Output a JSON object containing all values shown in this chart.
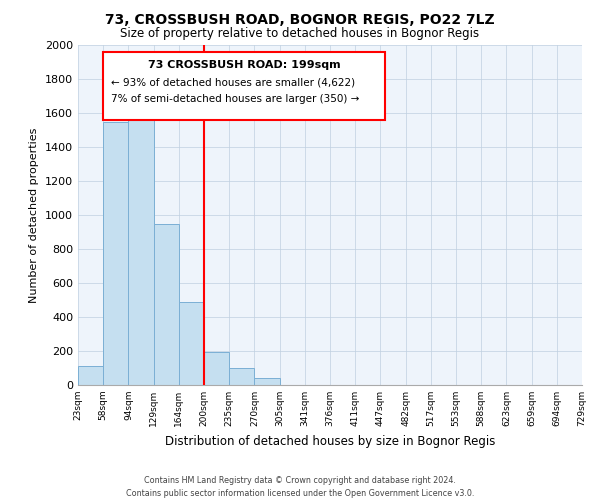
{
  "title": "73, CROSSBUSH ROAD, BOGNOR REGIS, PO22 7LZ",
  "subtitle": "Size of property relative to detached houses in Bognor Regis",
  "xlabel": "Distribution of detached houses by size in Bognor Regis",
  "ylabel": "Number of detached properties",
  "bar_color": "#c5dff0",
  "bar_edge_color": "#7bafd4",
  "bin_labels": [
    "23sqm",
    "58sqm",
    "94sqm",
    "129sqm",
    "164sqm",
    "200sqm",
    "235sqm",
    "270sqm",
    "305sqm",
    "341sqm",
    "376sqm",
    "411sqm",
    "447sqm",
    "482sqm",
    "517sqm",
    "553sqm",
    "588sqm",
    "623sqm",
    "659sqm",
    "694sqm",
    "729sqm"
  ],
  "bar_values": [
    110,
    1545,
    1565,
    950,
    490,
    195,
    100,
    40,
    0,
    0,
    0,
    0,
    0,
    0,
    0,
    0,
    0,
    0,
    0,
    0
  ],
  "ylim": [
    0,
    2000
  ],
  "yticks": [
    0,
    200,
    400,
    600,
    800,
    1000,
    1200,
    1400,
    1600,
    1800,
    2000
  ],
  "property_line_x": 5,
  "annotation_title": "73 CROSSBUSH ROAD: 199sqm",
  "annotation_line1": "← 93% of detached houses are smaller (4,622)",
  "annotation_line2": "7% of semi-detached houses are larger (350) →",
  "footer_line1": "Contains HM Land Registry data © Crown copyright and database right 2024.",
  "footer_line2": "Contains public sector information licensed under the Open Government Licence v3.0.",
  "background_color": "#ffffff",
  "plot_bg_color": "#eef4fb",
  "grid_color": "#c0d0e0"
}
